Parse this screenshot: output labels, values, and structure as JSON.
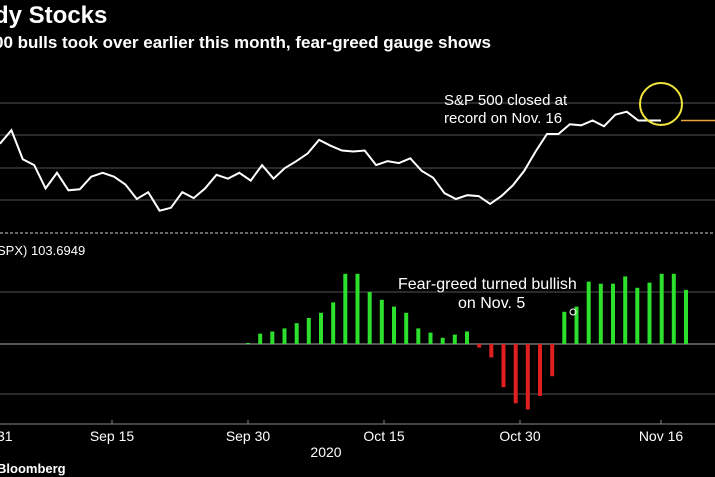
{
  "header": {
    "title": "dy Stocks",
    "subtitle": "00 bulls took over earlier this month, fear-greed gauge shows"
  },
  "footer": {
    "source": "Bloomberg"
  },
  "colors": {
    "line": "#ffffff",
    "orange": "#e8a33a",
    "highlight": "#f2e53b",
    "bull": "#2de02d",
    "bear": "#e02020",
    "grid": "#555555",
    "divider": "#666666"
  },
  "chart_data": [
    {
      "type": "line",
      "title": "",
      "annotations": [
        {
          "id": "record",
          "text_lines": [
            "S&P 500 closed at",
            "record on Nov. 16"
          ]
        }
      ],
      "highlight_marker": "circle-at-peak",
      "grid": true,
      "series": [
        {
          "values": [
            0.58,
            0.72,
            0.42,
            0.36,
            0.12,
            0.28,
            0.1,
            0.11,
            0.24,
            0.28,
            0.24,
            0.16,
            0.01,
            0.08,
            -0.11,
            -0.08,
            0.08,
            0.02,
            0.12,
            0.26,
            0.22,
            0.28,
            0.2,
            0.36,
            0.22,
            0.33,
            0.4,
            0.48,
            0.62,
            0.56,
            0.51,
            0.5,
            0.51,
            0.36,
            0.4,
            0.38,
            0.43,
            0.3,
            0.23,
            0.07,
            0.01,
            0.05,
            0.04,
            -0.04,
            0.04,
            0.15,
            0.3,
            0.5,
            0.68,
            0.68,
            0.78,
            0.77,
            0.82,
            0.76,
            0.88,
            0.91,
            0.82,
            0.82,
            0.82
          ],
          "last_segment_color": "orange"
        }
      ]
    },
    {
      "type": "bar",
      "label_prefix": "SPX) 103.6949",
      "annotations": [
        {
          "id": "bullish",
          "text_lines": [
            "Fear-greed turned bullish",
            "on Nov. 5"
          ]
        }
      ],
      "x_tick_labels": [
        "31",
        "Sep 15",
        "Sep 30",
        "Oct 15",
        "Oct 30",
        "Nov 16"
      ],
      "x_year_label": "2020",
      "series": [
        {
          "values": [
            0.02,
            0.2,
            0.24,
            0.3,
            0.4,
            0.5,
            0.6,
            0.8,
            1.35,
            1.35,
            1.0,
            0.85,
            0.72,
            0.6,
            0.3,
            0.22,
            0.12,
            0.18,
            0.24,
            -0.07,
            -0.26,
            -0.83,
            -1.14,
            -1.26,
            -1.0,
            -0.62,
            0.62,
            0.72,
            1.2,
            1.16,
            1.16,
            1.3,
            1.08,
            1.18,
            1.35,
            1.35,
            1.04
          ]
        }
      ]
    }
  ]
}
